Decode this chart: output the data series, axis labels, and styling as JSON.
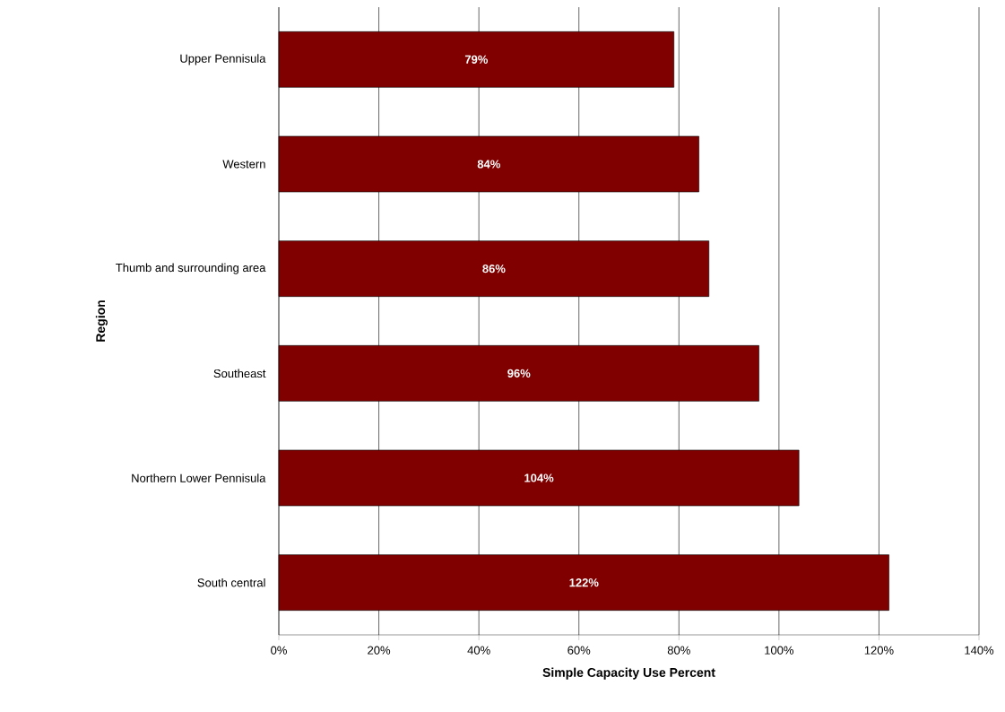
{
  "chart_data": {
    "type": "bar",
    "orientation": "horizontal",
    "xlabel": "Simple Capacity Use Percent",
    "ylabel": "Region",
    "categories": [
      "Upper Pennisula",
      "Western",
      "Thumb and surrounding area",
      "Southeast",
      "Northern Lower Pennisula",
      "South central"
    ],
    "values": [
      79,
      84,
      86,
      96,
      104,
      122
    ],
    "value_labels": [
      "79%",
      "84%",
      "86%",
      "96%",
      "104%",
      "122%"
    ],
    "color": "#800000",
    "xlim": [
      0,
      140
    ],
    "xticks": [
      {
        "value": 0,
        "label": "0%"
      },
      {
        "value": 20,
        "label": "20%"
      },
      {
        "value": 40,
        "label": "40%"
      },
      {
        "value": 60,
        "label": "60%"
      },
      {
        "value": 80,
        "label": "80%"
      },
      {
        "value": 100,
        "label": "100%"
      },
      {
        "value": 120,
        "label": "120%"
      },
      {
        "value": 140,
        "label": "140%"
      }
    ],
    "grid": "x"
  }
}
